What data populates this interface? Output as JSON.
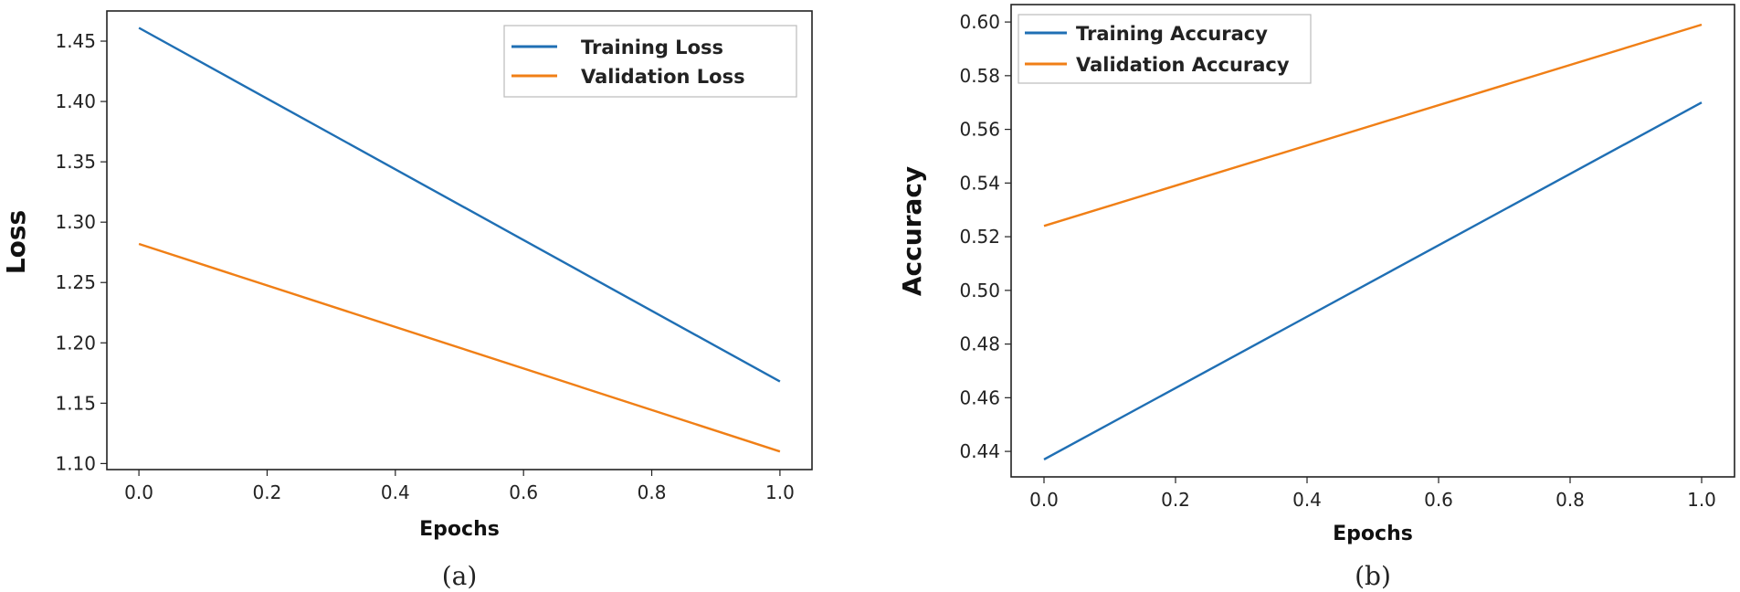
{
  "figure": {
    "caption_a": "(a)",
    "caption_b": "(b)"
  },
  "chart_data": [
    {
      "type": "line",
      "title": "",
      "xlabel": "Epochs",
      "ylabel": "Loss",
      "xlim": [
        -0.05,
        1.05
      ],
      "ylim": [
        1.095,
        1.475
      ],
      "xticks": [
        0.0,
        0.2,
        0.4,
        0.6,
        0.8,
        1.0
      ],
      "xtick_labels": [
        "0.0",
        "0.2",
        "0.4",
        "0.6",
        "0.8",
        "1.0"
      ],
      "yticks": [
        1.1,
        1.15,
        1.2,
        1.25,
        1.3,
        1.35,
        1.4,
        1.45
      ],
      "ytick_labels": [
        "1.10",
        "1.15",
        "1.20",
        "1.25",
        "1.30",
        "1.35",
        "1.40",
        "1.45"
      ],
      "x": [
        0.0,
        1.0
      ],
      "series": [
        {
          "name": "Training Loss",
          "color": "#1f6fb4",
          "values": [
            1.461,
            1.168
          ]
        },
        {
          "name": "Validation Loss",
          "color": "#f07f16",
          "values": [
            1.282,
            1.11
          ]
        }
      ],
      "legend": "top-right"
    },
    {
      "type": "line",
      "title": "",
      "xlabel": "Epochs",
      "ylabel": "Accuracy",
      "xlim": [
        -0.05,
        1.05
      ],
      "ylim": [
        0.4305,
        0.6065
      ],
      "xticks": [
        0.0,
        0.2,
        0.4,
        0.6,
        0.8,
        1.0
      ],
      "xtick_labels": [
        "0.0",
        "0.2",
        "0.4",
        "0.6",
        "0.8",
        "1.0"
      ],
      "yticks": [
        0.44,
        0.46,
        0.48,
        0.5,
        0.52,
        0.54,
        0.56,
        0.58,
        0.6
      ],
      "ytick_labels": [
        "0.44",
        "0.46",
        "0.48",
        "0.50",
        "0.52",
        "0.54",
        "0.56",
        "0.58",
        "0.60"
      ],
      "x": [
        0.0,
        1.0
      ],
      "series": [
        {
          "name": "Training Accuracy",
          "color": "#1f6fb4",
          "values": [
            0.437,
            0.57
          ]
        },
        {
          "name": "Validation Accuracy",
          "color": "#f07f16",
          "values": [
            0.524,
            0.599
          ]
        }
      ],
      "legend": "top-left"
    }
  ]
}
